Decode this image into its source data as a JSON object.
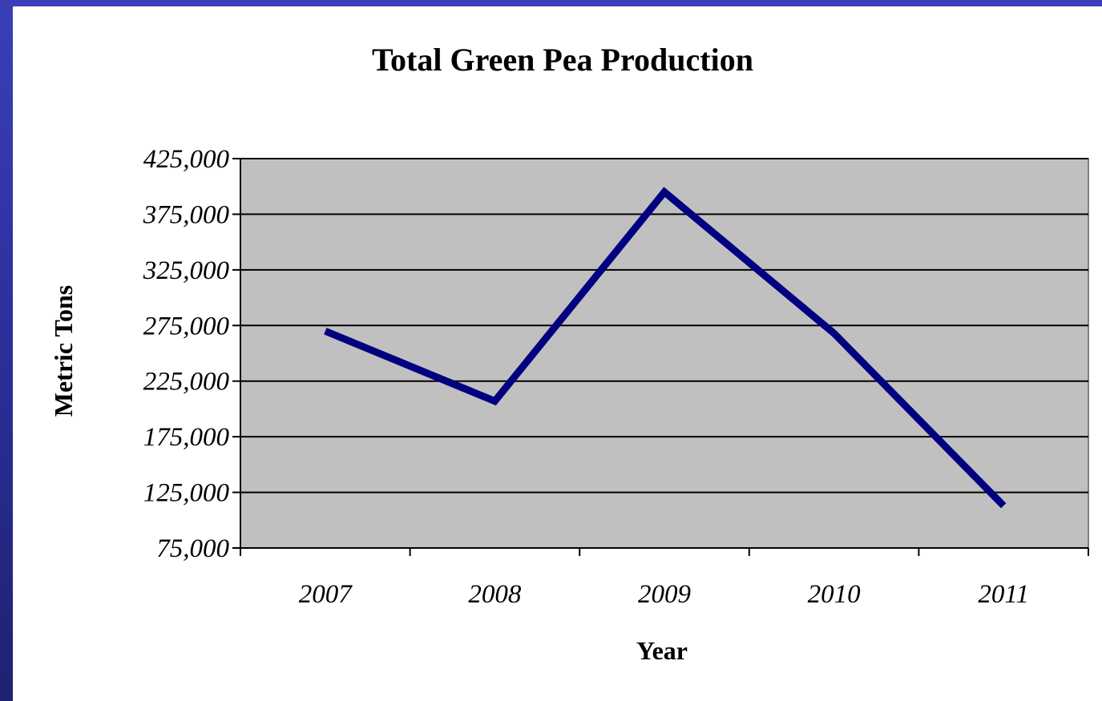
{
  "chart_data": {
    "type": "line",
    "title": "Total Green Pea Production",
    "xlabel": "Year",
    "ylabel": "Metric Tons",
    "categories": [
      "2007",
      "2008",
      "2009",
      "2010",
      "2011"
    ],
    "series": [
      {
        "values": [
          270000,
          207000,
          395000,
          268000,
          113000
        ],
        "color": "#000080"
      }
    ],
    "ylim": [
      75000,
      425000
    ],
    "yticks": [
      "75,000",
      "125,000",
      "175,000",
      "225,000",
      "275,000",
      "325,000",
      "375,000",
      "425,000"
    ],
    "ytick_values": [
      75000,
      125000,
      175000,
      225000,
      275000,
      325000,
      375000,
      425000
    ],
    "grid": true,
    "plot_background": "#c0c0c0",
    "legend": "none"
  }
}
